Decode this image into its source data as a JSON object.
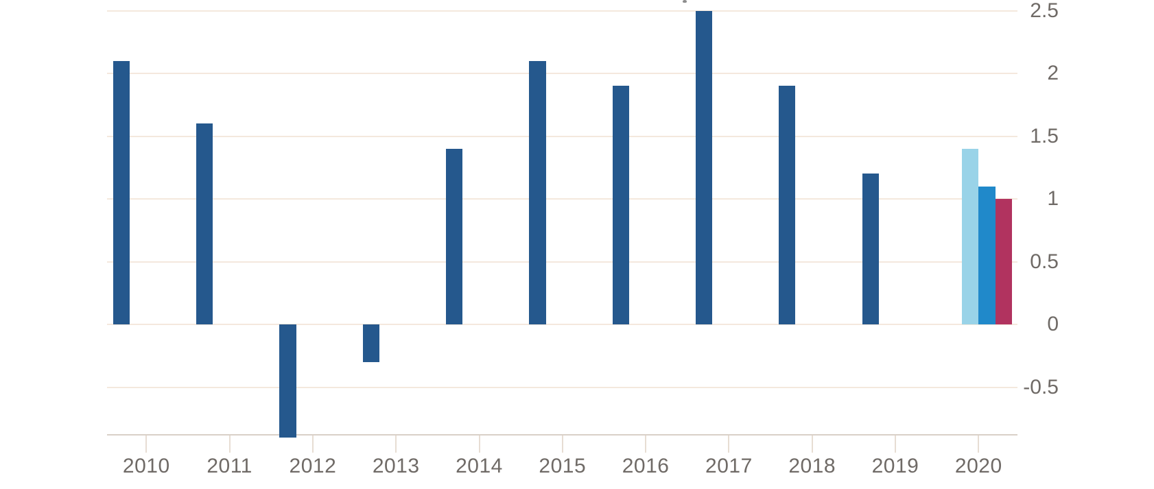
{
  "chart_data": {
    "type": "bar",
    "title": "",
    "categories": [
      "2010",
      "2011",
      "2012",
      "2013",
      "2014",
      "2015",
      "2016",
      "2017",
      "2018",
      "2019",
      "2020"
    ],
    "series": [
      {
        "name": "actual-dark-blue",
        "color": "#25588D",
        "values": [
          2.1,
          1.6,
          -0.9,
          -0.3,
          1.4,
          2.1,
          1.9,
          2.5,
          1.9,
          1.2,
          null
        ]
      },
      {
        "name": "forecast-light-blue",
        "color": "#99D3E8",
        "values": [
          null,
          null,
          null,
          null,
          null,
          null,
          null,
          null,
          null,
          null,
          1.4
        ]
      },
      {
        "name": "forecast-mid-blue",
        "color": "#2089CA",
        "values": [
          null,
          null,
          null,
          null,
          null,
          null,
          null,
          null,
          null,
          null,
          1.1
        ]
      },
      {
        "name": "forecast-crimson",
        "color": "#B1335F",
        "values": [
          null,
          null,
          null,
          null,
          null,
          null,
          null,
          null,
          null,
          null,
          1.0
        ]
      }
    ],
    "y_axis": {
      "side": "right",
      "tick_labels": [
        "2.5",
        "2",
        "1.5",
        "1",
        "0.5",
        "0",
        "-0.5"
      ],
      "tick_values": [
        2.5,
        2,
        1.5,
        1,
        0.5,
        0,
        -0.5
      ]
    },
    "x_axis": {
      "tick_labels": [
        "2010",
        "2011",
        "2012",
        "2013",
        "2014",
        "2015",
        "2016",
        "2017",
        "2018",
        "2019",
        "2020"
      ]
    },
    "ylim": [
      -0.88,
      2.59
    ],
    "grid": true,
    "legend": false
  },
  "colors": {
    "background": "#ffffff",
    "gridline": "#f4e8dd",
    "axis_line": "#d9d0c7",
    "tick_mark": "#e7ddd3",
    "label_text": "#6f6a66",
    "artifact": "#8d8d8d"
  },
  "artifact": {
    "note": "tiny remnant of cropped text at top center"
  }
}
